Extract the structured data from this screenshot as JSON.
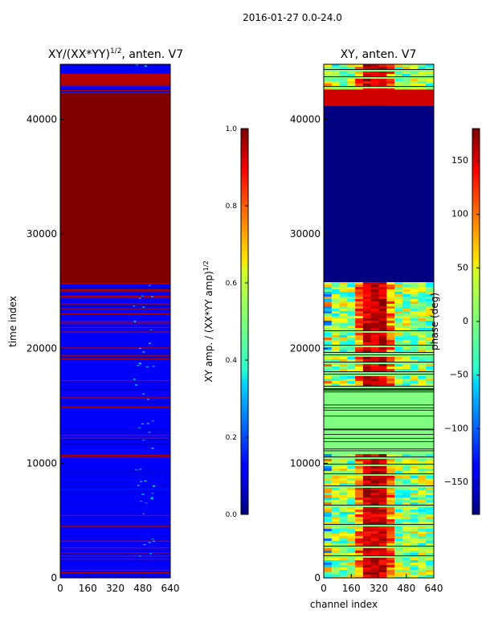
{
  "suptitle": "2016-01-27 0.0-24.0",
  "chart_data": [
    {
      "type": "heatmap",
      "title_main": "XY/(XX*YY)",
      "title_exp": "1/2",
      "title_suffix": ", anten. V7",
      "xlabel": "",
      "ylabel": "time index",
      "xlim": [
        0,
        640
      ],
      "ylim": [
        0,
        44800
      ],
      "xticks": [
        0,
        160,
        320,
        480,
        640
      ],
      "yticks": [
        0,
        10000,
        20000,
        30000,
        40000
      ],
      "colormap": "jet",
      "colorbar": {
        "label_main": "XY amp. / (XX*YY amp)",
        "label_exp": "1/2",
        "min": 0.0,
        "max": 1.0,
        "ticks": [
          "0.0",
          "0.2",
          "0.4",
          "0.6",
          "0.8",
          "1.0"
        ],
        "tick_values": [
          0.0,
          0.2,
          0.4,
          0.6,
          0.8,
          1.0
        ]
      },
      "regions": [
        {
          "from": 0,
          "to": 10800,
          "description": "mostly low (~0.05-0.15) with scattered high rows"
        },
        {
          "from": 10800,
          "to": 25800,
          "description": "mostly low with many saturated (1.0) rows"
        },
        {
          "from": 25800,
          "to": 42300,
          "value": 1.0
        },
        {
          "from": 42300,
          "to": 44800,
          "description": "mostly low with a band of 1.0"
        }
      ]
    },
    {
      "type": "heatmap",
      "title": "XY, anten. V7",
      "xlabel": "channel index",
      "ylabel": "",
      "xlim": [
        0,
        640
      ],
      "ylim": [
        0,
        44800
      ],
      "xticks": [
        0,
        160,
        320,
        480,
        640
      ],
      "yticks": [
        0,
        10000,
        20000,
        30000,
        40000
      ],
      "colormap": "jet",
      "colorbar": {
        "label": "phase (deg)",
        "min": -180,
        "max": 180,
        "ticks": [
          "−150",
          "−100",
          "−50",
          "0",
          "50",
          "100",
          "150"
        ],
        "tick_values": [
          -150,
          -100,
          -50,
          0,
          50,
          100,
          150
        ]
      },
      "regions": [
        {
          "from": 0,
          "to": 10800,
          "description": "mixed phases, channel-dependent structure"
        },
        {
          "from": 10800,
          "to": 16500,
          "value": 0,
          "description": "uniform ~0 deg with dark lines"
        },
        {
          "from": 16500,
          "to": 25800,
          "description": "mixed phases, high phase near channels 250-350"
        },
        {
          "from": 25800,
          "to": 41200,
          "value": -180
        },
        {
          "from": 41200,
          "to": 44800,
          "description": "mixed with a dark red band"
        }
      ]
    }
  ]
}
